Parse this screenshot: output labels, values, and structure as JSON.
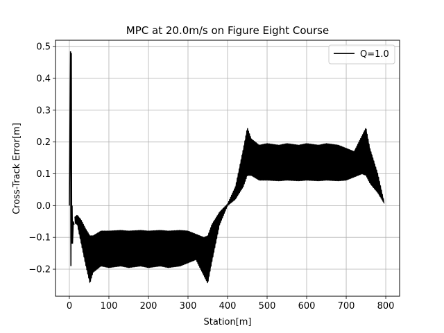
{
  "chart_data": {
    "type": "line",
    "title": "MPC at 20.0m/s on Figure Eight Course",
    "xlabel": "Station[m]",
    "ylabel": "Cross-Track Error[m]",
    "xlim": [
      -35,
      835
    ],
    "ylim": [
      -0.285,
      0.52
    ],
    "xticks": [
      0,
      100,
      200,
      300,
      400,
      500,
      600,
      700,
      800
    ],
    "yticks": [
      -0.2,
      -0.1,
      0.0,
      0.1,
      0.2,
      0.3,
      0.4,
      0.5
    ],
    "xtick_labels": [
      "0",
      "100",
      "200",
      "300",
      "400",
      "500",
      "600",
      "700",
      "800"
    ],
    "ytick_labels": [
      "−0.2",
      "−0.1",
      "0.0",
      "0.1",
      "0.2",
      "0.3",
      "0.4",
      "0.5"
    ],
    "grid": true,
    "legend_position": "top-right",
    "series": [
      {
        "name": "Q=1.0",
        "color": "#000000",
        "start_spike": {
          "x": [
            0,
            3,
            4,
            5,
            6,
            7,
            8,
            10,
            12
          ],
          "y": [
            0.0,
            0.485,
            -0.19,
            0.48,
            -0.12,
            0.0,
            -0.12,
            -0.05,
            -0.06
          ]
        },
        "oscillation_band": {
          "x": [
            14,
            20,
            30,
            40,
            52,
            60,
            80,
            100,
            130,
            150,
            180,
            200,
            230,
            250,
            280,
            300,
            320,
            340,
            350,
            360,
            380,
            400,
            420,
            440,
            450,
            460,
            480,
            500,
            530,
            550,
            580,
            600,
            630,
            650,
            680,
            700,
            720,
            740,
            750,
            760,
            780,
            797
          ],
          "upper": [
            -0.035,
            -0.03,
            -0.045,
            -0.07,
            -0.095,
            -0.095,
            -0.08,
            -0.08,
            -0.078,
            -0.08,
            -0.078,
            -0.08,
            -0.078,
            -0.08,
            -0.078,
            -0.08,
            -0.09,
            -0.1,
            -0.095,
            -0.06,
            -0.02,
            0.005,
            0.06,
            0.18,
            0.245,
            0.21,
            0.19,
            0.195,
            0.19,
            0.195,
            0.19,
            0.195,
            0.19,
            0.195,
            0.19,
            0.18,
            0.17,
            0.22,
            0.245,
            0.18,
            0.1,
            0.005
          ],
          "lower": [
            -0.055,
            -0.06,
            -0.12,
            -0.18,
            -0.245,
            -0.21,
            -0.19,
            -0.195,
            -0.19,
            -0.195,
            -0.19,
            -0.195,
            -0.19,
            -0.195,
            -0.19,
            -0.18,
            -0.17,
            -0.22,
            -0.245,
            -0.18,
            -0.06,
            0.0,
            0.02,
            0.06,
            0.095,
            0.095,
            0.08,
            0.08,
            0.078,
            0.08,
            0.078,
            0.08,
            0.078,
            0.08,
            0.078,
            0.08,
            0.09,
            0.1,
            0.095,
            0.07,
            0.04,
            0.005
          ]
        }
      }
    ]
  }
}
